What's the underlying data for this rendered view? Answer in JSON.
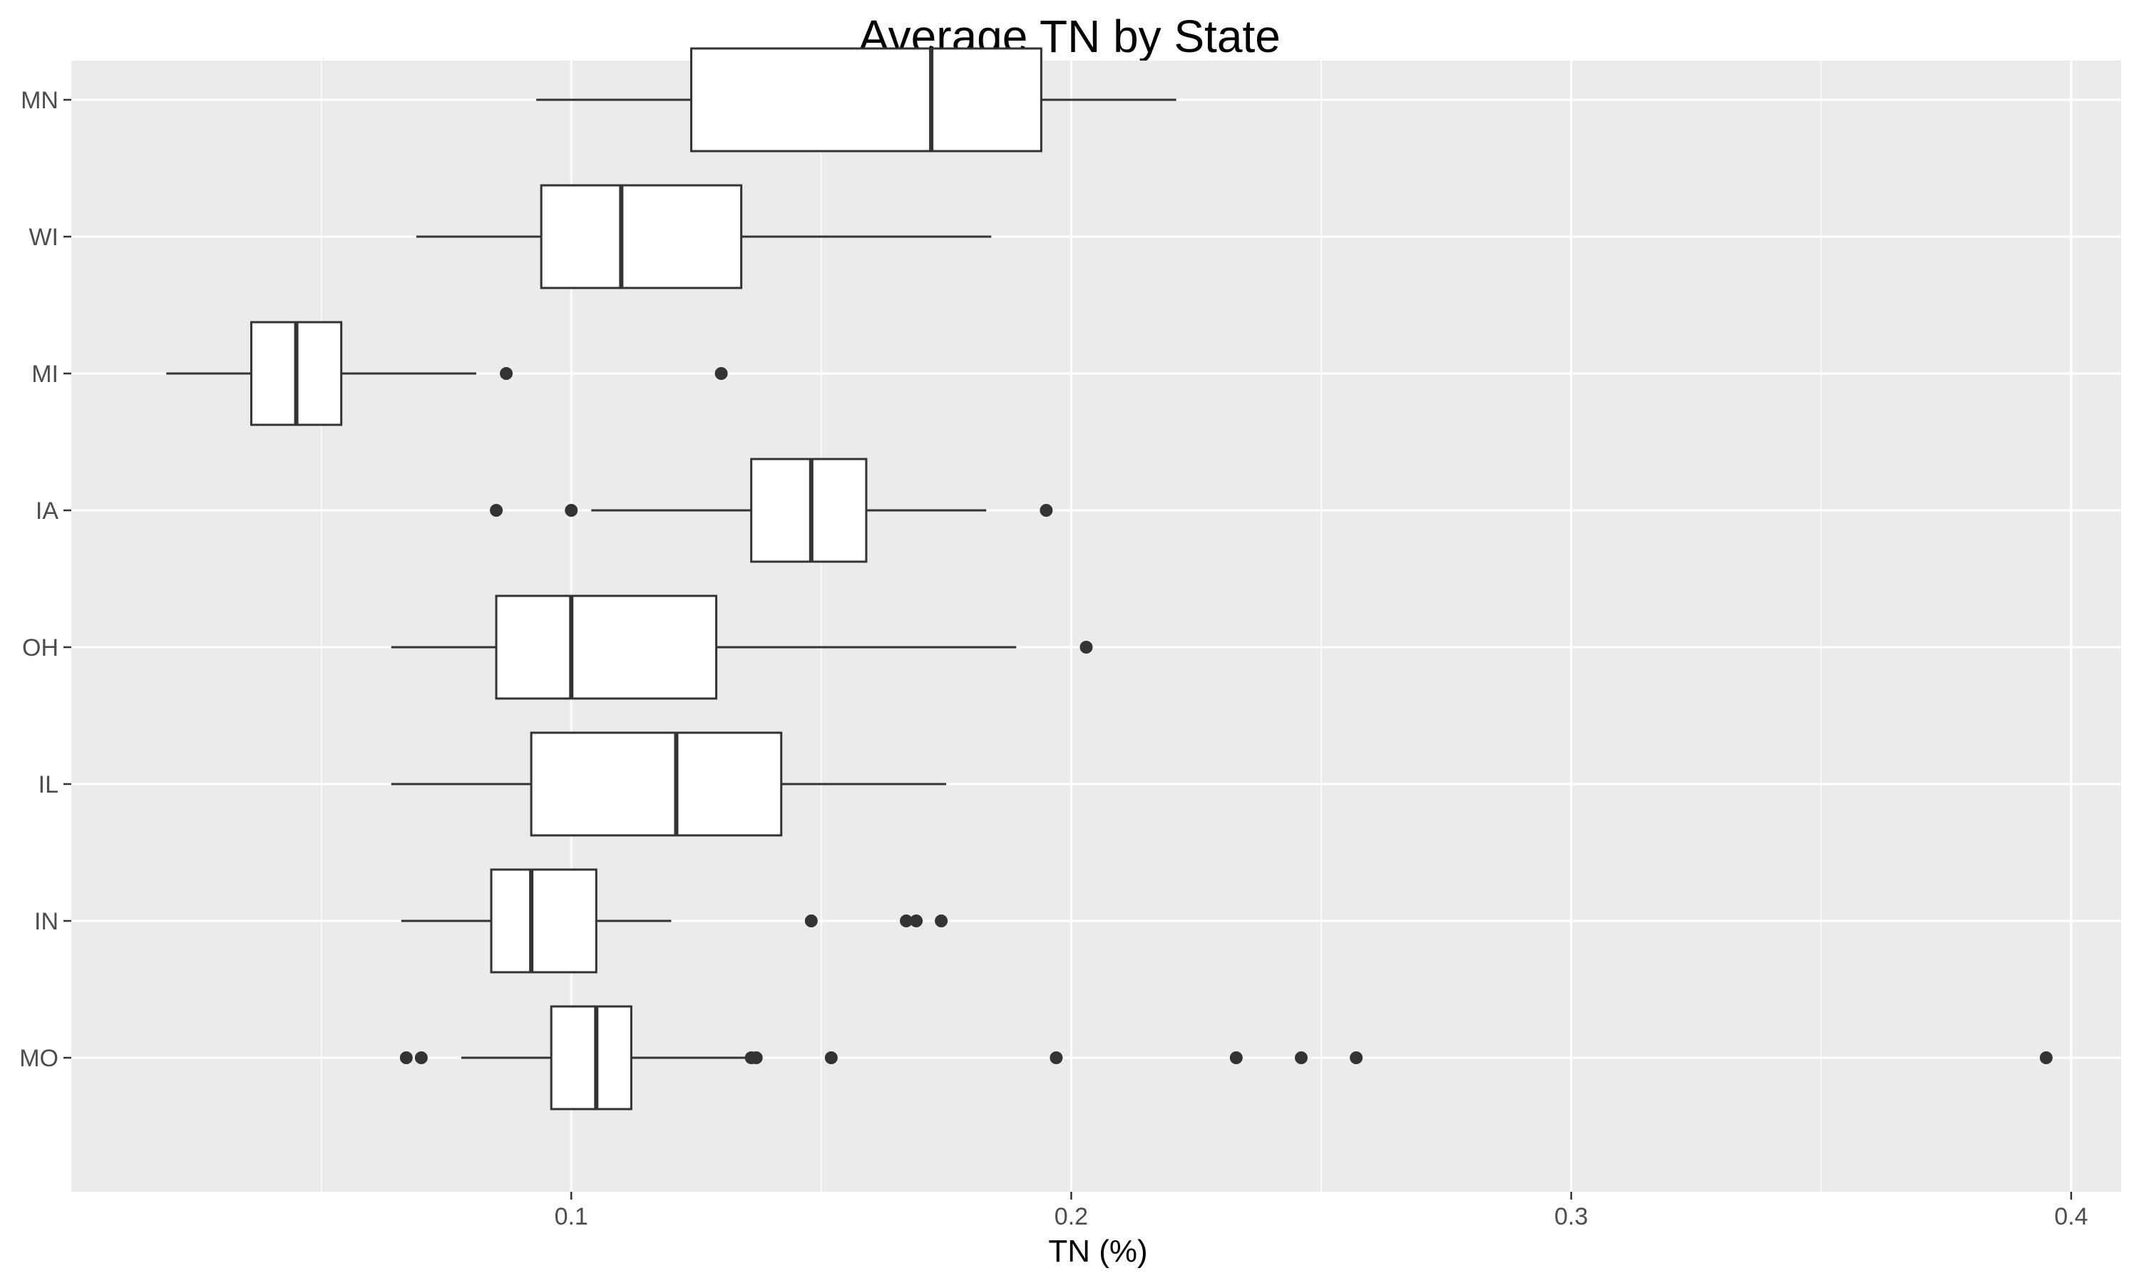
{
  "chart_data": {
    "type": "boxplot",
    "orientation": "horizontal",
    "title": "Average TN by State",
    "xlabel": "TN (%)",
    "ylabel": "",
    "xlim": [
      0.0,
      0.41
    ],
    "x_ticks": [
      0.1,
      0.2,
      0.3,
      0.4
    ],
    "x_tick_labels": [
      "0.1",
      "0.2",
      "0.3",
      "0.4"
    ],
    "grid": true,
    "background": "#ebebeb",
    "grid_color": "#ffffff",
    "box_fill": "#ffffff",
    "line_color": "#333333",
    "categories": [
      "MN",
      "WI",
      "MI",
      "IA",
      "OH",
      "IL",
      "IN",
      "MO"
    ],
    "boxes": [
      {
        "label": "MN",
        "whisker_low": 0.093,
        "q1": 0.124,
        "median": 0.172,
        "q3": 0.194,
        "whisker_high": 0.221,
        "outliers": []
      },
      {
        "label": "WI",
        "whisker_low": 0.069,
        "q1": 0.094,
        "median": 0.11,
        "q3": 0.134,
        "whisker_high": 0.184,
        "outliers": []
      },
      {
        "label": "MI",
        "whisker_low": 0.019,
        "q1": 0.036,
        "median": 0.045,
        "q3": 0.054,
        "whisker_high": 0.081,
        "outliers": [
          0.087,
          0.13
        ]
      },
      {
        "label": "IA",
        "whisker_low": 0.104,
        "q1": 0.136,
        "median": 0.148,
        "q3": 0.159,
        "whisker_high": 0.183,
        "outliers": [
          0.085,
          0.1,
          0.195
        ]
      },
      {
        "label": "OH",
        "whisker_low": 0.064,
        "q1": 0.085,
        "median": 0.1,
        "q3": 0.129,
        "whisker_high": 0.189,
        "outliers": [
          0.203
        ]
      },
      {
        "label": "IL",
        "whisker_low": 0.064,
        "q1": 0.092,
        "median": 0.121,
        "q3": 0.142,
        "whisker_high": 0.175,
        "outliers": []
      },
      {
        "label": "IN",
        "whisker_low": 0.066,
        "q1": 0.084,
        "median": 0.092,
        "q3": 0.105,
        "whisker_high": 0.12,
        "outliers": [
          0.148,
          0.167,
          0.169,
          0.174
        ]
      },
      {
        "label": "MO",
        "whisker_low": 0.078,
        "q1": 0.096,
        "median": 0.105,
        "q3": 0.112,
        "whisker_high": 0.135,
        "outliers": [
          0.067,
          0.07,
          0.136,
          0.137,
          0.152,
          0.197,
          0.233,
          0.246,
          0.257,
          0.395
        ]
      }
    ]
  }
}
